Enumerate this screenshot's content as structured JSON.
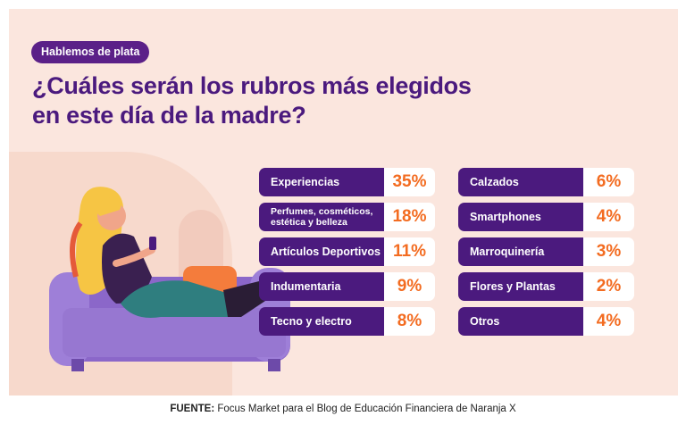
{
  "tag": "Hablemos de plata",
  "title_lines": [
    "¿Cuáles serán los rubros más elegidos",
    "en este día de la madre?"
  ],
  "source": {
    "prefix": "FUENTE:",
    "text": "Focus Market para el Blog de Educación Financiera de Naranja X"
  },
  "colors": {
    "purple": "#4b1a7e",
    "orange": "#f36c21",
    "background": "#fbe6de"
  },
  "chart_data": {
    "type": "table",
    "title": "¿Cuáles serán los rubros más elegidos en este día de la madre?",
    "unit": "%",
    "categories": [
      "Experiencias",
      "Perfumes, cosméticos, estética y belleza",
      "Artículos Deportivos",
      "Indumentaria",
      "Tecno y electro",
      "Calzados",
      "Smartphones",
      "Marroquinería",
      "Flores y Plantas",
      "Otros"
    ],
    "values": [
      35,
      18,
      11,
      9,
      8,
      6,
      4,
      3,
      2,
      4
    ],
    "labels": [
      "35%",
      "18%",
      "11%",
      "9%",
      "8%",
      "6%",
      "4%",
      "3%",
      "2%",
      "4%"
    ],
    "label_lines": [
      [
        "Experiencias"
      ],
      [
        "Perfumes, cosméticos,",
        "estética y belleza"
      ],
      [
        "Artículos Deportivos"
      ],
      [
        "Indumentaria"
      ],
      [
        "Tecno y electro"
      ],
      [
        "Calzados"
      ],
      [
        "Smartphones"
      ],
      [
        "Marroquinería"
      ],
      [
        "Flores y Plantas"
      ],
      [
        "Otros"
      ]
    ]
  }
}
